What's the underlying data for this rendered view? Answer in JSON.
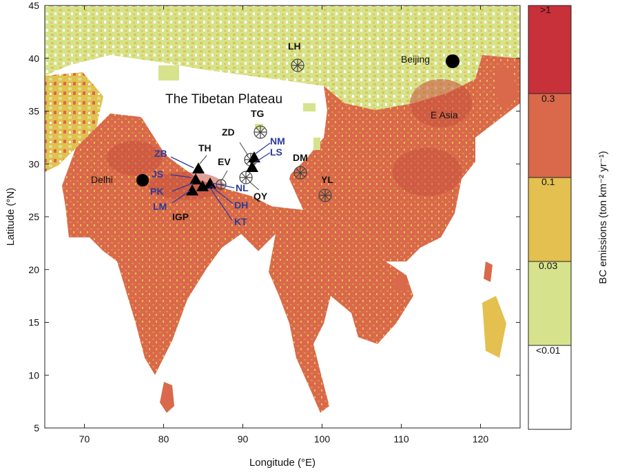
{
  "axes": {
    "xlabel": "Longitude (°E)",
    "ylabel": "Latitude (°N)",
    "xlim": [
      65,
      125
    ],
    "ylim": [
      5,
      45
    ],
    "xticks": [
      "70",
      "80",
      "90",
      "100",
      "110",
      "120"
    ],
    "yticks": [
      "5",
      "10",
      "15",
      "20",
      "25",
      "30",
      "35",
      "40",
      "45"
    ]
  },
  "colorbar": {
    "label": "BC emissions (ton km⁻² yr⁻¹)",
    "classes": [
      {
        "label": "<0.01",
        "color": "#ffffff"
      },
      {
        "label": "0.03",
        "color": "#d6e38c"
      },
      {
        "label": "0.1",
        "color": "#e3c04f"
      },
      {
        "label": "0.3",
        "color": "#d9694a"
      },
      {
        "label": ">1",
        "color": "#c8303a"
      }
    ],
    "boundary_labels": [
      ">1",
      "0.3",
      "0.1",
      "0.03",
      "<0.01"
    ]
  },
  "regions": {
    "plateau_label": "The Tibetan Plateau",
    "igp_label": "IGP",
    "easia_label": "E Asia"
  },
  "cities": [
    {
      "name": "Delhi",
      "lon": 77.2,
      "lat": 28.6
    },
    {
      "name": "Beijing",
      "lon": 116.4,
      "lat": 39.9
    }
  ],
  "black_sites": [
    {
      "name": "LH",
      "lon": 96.9,
      "lat": 39.4,
      "marker": "circle-cross"
    },
    {
      "name": "TG",
      "lon": 92.1,
      "lat": 33.1,
      "marker": "circle-cross"
    },
    {
      "name": "ZD",
      "lon": 90.6,
      "lat": 30.5,
      "marker": "circle-cross"
    },
    {
      "name": "TH",
      "lon": 84.0,
      "lat": 29.5,
      "marker": "triangle"
    },
    {
      "name": "EV",
      "lon": 86.8,
      "lat": 28.0,
      "marker": "circle-cross"
    },
    {
      "name": "DM",
      "lon": 96.9,
      "lat": 29.4,
      "marker": "circle-cross"
    },
    {
      "name": "YL",
      "lon": 100.2,
      "lat": 27.1,
      "marker": "circle-cross"
    },
    {
      "name": "QY",
      "lon": 90.3,
      "lat": 28.9,
      "marker": "circle-cross"
    }
  ],
  "blue_sites": [
    "ZB",
    "JS",
    "PK",
    "LM",
    "NM",
    "LS",
    "NL",
    "DH",
    "KT"
  ],
  "colors": {
    "ocean": "#ffffff",
    "land_base": "#d9694a",
    "plateau": "#ffffff",
    "site_blue": "#2b3a9c"
  }
}
